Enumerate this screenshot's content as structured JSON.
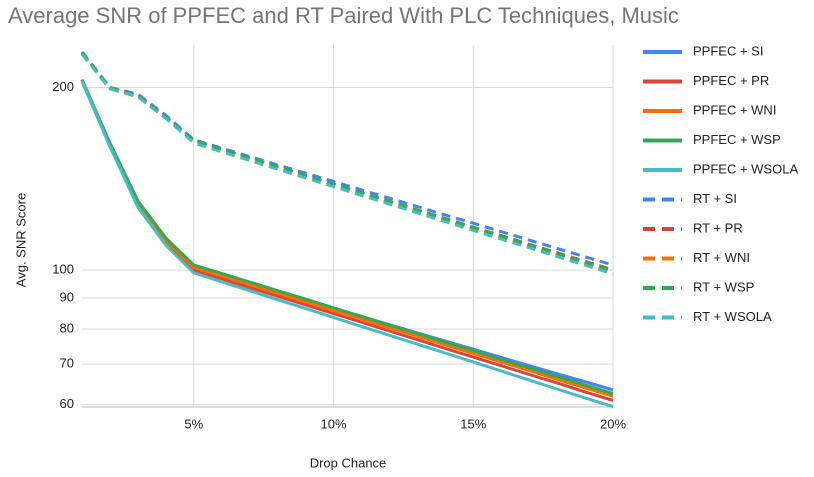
{
  "chart_data": {
    "type": "line",
    "title": "Average SNR of PPFEC and RT Paired With PLC Techniques, Music",
    "x_label": "Drop Chance",
    "y_label": "Avg. SNR Score",
    "x": [
      1,
      2,
      3,
      4,
      5,
      6,
      7,
      8,
      9,
      10,
      11,
      12,
      13,
      14,
      15,
      16,
      17,
      18,
      19,
      20
    ],
    "xlim": [
      1,
      20
    ],
    "xticks": [
      {
        "value": 5,
        "label": "5%"
      },
      {
        "value": 10,
        "label": "10%"
      },
      {
        "value": 15,
        "label": "15%"
      },
      {
        "value": 20,
        "label": "20%"
      }
    ],
    "ylim": [
      59.5,
      235
    ],
    "yticks": [
      60,
      70,
      80,
      90,
      100,
      200
    ],
    "log_scale_y": true,
    "grid": true,
    "legend": "right",
    "series": [
      {
        "name": "PPFEC + SI",
        "color": "#4285f4",
        "dashed": false,
        "values": [
          206,
          162,
          130,
          113,
          101,
          97.9,
          94.9,
          92.0,
          89.2,
          86.5,
          83.9,
          81.3,
          78.8,
          76.4,
          74.1,
          71.8,
          69.6,
          67.5,
          65.5,
          63.5
        ]
      },
      {
        "name": "PPFEC + PR",
        "color": "#db4437",
        "dashed": false,
        "values": [
          205,
          160,
          128,
          111,
          100,
          96.8,
          93.6,
          90.6,
          87.7,
          84.8,
          82.1,
          79.4,
          76.8,
          74.3,
          71.9,
          69.6,
          67.3,
          65.2,
          63.0,
          61.0
        ]
      },
      {
        "name": "PPFEC + WNI",
        "color": "#ff6d01",
        "dashed": false,
        "values": [
          206,
          161,
          129,
          112,
          101,
          97.8,
          94.6,
          91.6,
          88.7,
          85.8,
          83.1,
          80.4,
          77.8,
          75.3,
          72.9,
          70.6,
          68.3,
          66.1,
          64.0,
          62.0
        ]
      },
      {
        "name": "PPFEC + WSP",
        "color": "#34a853",
        "dashed": false,
        "values": [
          206,
          162,
          130,
          113,
          102,
          98.8,
          95.6,
          92.5,
          89.6,
          86.7,
          83.9,
          81.2,
          78.6,
          76.1,
          73.7,
          71.3,
          69.0,
          66.8,
          64.7,
          62.6
        ]
      },
      {
        "name": "PPFEC + WSOLA",
        "color": "#46bdc6",
        "dashed": false,
        "values": [
          205,
          160,
          127,
          110,
          99,
          95.7,
          92.5,
          89.4,
          86.5,
          83.6,
          80.8,
          78.1,
          75.5,
          73.0,
          70.6,
          68.2,
          65.9,
          63.7,
          61.6,
          59.6
        ]
      },
      {
        "name": "RT + SI",
        "color": "#4285f4",
        "dashed": true,
        "values": [
          229,
          200,
          195,
          180,
          164,
          158.9,
          153.9,
          149.1,
          144.5,
          140.0,
          135.6,
          131.4,
          127.3,
          123.3,
          119.5,
          115.7,
          112.1,
          108.6,
          105.2,
          102.0
        ]
      },
      {
        "name": "RT + PR",
        "color": "#db4437",
        "dashed": true,
        "values": [
          228,
          200,
          194,
          179,
          163,
          157.8,
          152.7,
          147.8,
          143.1,
          138.5,
          134.1,
          129.8,
          125.6,
          121.6,
          117.7,
          114.0,
          110.3,
          106.8,
          103.4,
          100.1
        ]
      },
      {
        "name": "RT + WNI",
        "color": "#ff6d01",
        "dashed": true,
        "values": [
          228,
          199,
          193,
          178,
          163,
          157.7,
          152.6,
          147.6,
          142.8,
          138.2,
          133.7,
          129.4,
          125.2,
          121.1,
          117.2,
          113.4,
          109.7,
          106.2,
          102.7,
          99.4
        ]
      },
      {
        "name": "RT + WSP",
        "color": "#34a853",
        "dashed": true,
        "values": [
          228,
          200,
          194,
          179,
          163.5,
          158.2,
          153.1,
          148.1,
          143.3,
          138.7,
          134.2,
          129.8,
          125.6,
          121.6,
          117.6,
          113.8,
          110.1,
          106.6,
          103.1,
          99.8
        ]
      },
      {
        "name": "RT + WSOLA",
        "color": "#46bdc6",
        "dashed": true,
        "values": [
          227,
          199,
          193,
          178,
          162,
          156.7,
          151.6,
          146.7,
          141.9,
          137.3,
          132.8,
          128.5,
          124.3,
          120.2,
          116.3,
          112.5,
          108.9,
          105.3,
          101.9,
          98.6
        ]
      }
    ]
  }
}
